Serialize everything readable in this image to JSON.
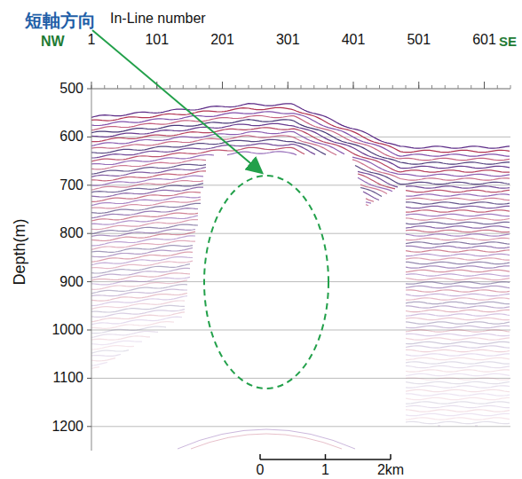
{
  "chart_data": {
    "type": "seismic_section",
    "annotation": "短軸方向",
    "xlabel": "In-Line number",
    "xlim": [
      1,
      641
    ],
    "xticks": [
      1,
      101,
      201,
      301,
      401,
      501,
      601
    ],
    "ylabel": "Depth(m)",
    "ylim": [
      500,
      1250
    ],
    "yticks": [
      500,
      600,
      700,
      800,
      900,
      1000,
      1100,
      1200
    ],
    "grid": true,
    "direction_labels": {
      "left": "NW",
      "right": "SE"
    },
    "scale_bar": {
      "ticks": [
        0,
        1,
        {
          "value": 2,
          "label": "2km"
        }
      ]
    }
  }
}
